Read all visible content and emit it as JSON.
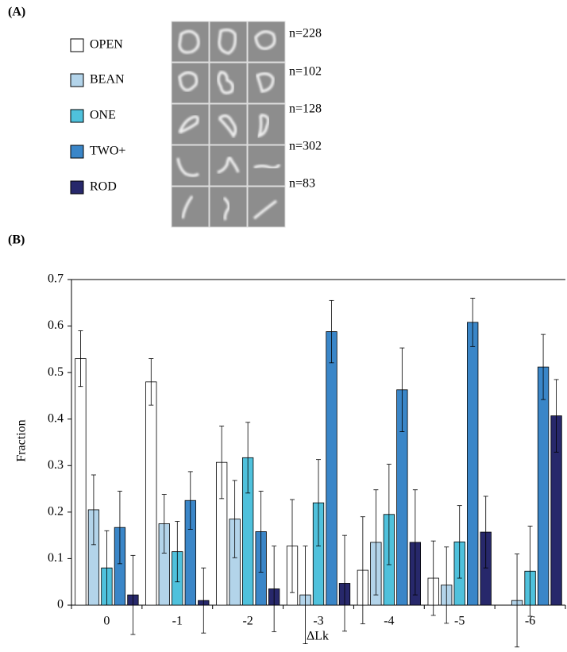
{
  "panels": [
    "(A)",
    "(B)"
  ],
  "counts": [
    "n=228",
    "n=102",
    "n=128",
    "n=302",
    "n=83"
  ],
  "chart_data": {
    "type": "bar",
    "x_label": "ΔLk",
    "y_label": "Fraction",
    "categories": [
      "0",
      "-1",
      "-2",
      "-3",
      "-4",
      "-5",
      "-6"
    ],
    "series": [
      {
        "name": "OPEN",
        "color": "#ffffff",
        "values": [
          0.53,
          0.48,
          0.307,
          0.127,
          0.075,
          0.058,
          0
        ],
        "errors": [
          0.06,
          0.05,
          0.078,
          0.1,
          0.115,
          0.08,
          0
        ]
      },
      {
        "name": "BEAN",
        "color": "#b3d4ea",
        "values": [
          0.205,
          0.175,
          0.185,
          0.022,
          0.135,
          0.043,
          0.01
        ],
        "errors": [
          0.075,
          0.063,
          0.083,
          0.105,
          0.113,
          0.082,
          0.1
        ]
      },
      {
        "name": "ONE",
        "color": "#4fc1dc",
        "values": [
          0.08,
          0.115,
          0.317,
          0.22,
          0.195,
          0.136,
          0.073
        ],
        "errors": [
          0.08,
          0.065,
          0.076,
          0.093,
          0.108,
          0.078,
          0.097
        ]
      },
      {
        "name": "TWO+",
        "color": "#3a86c8",
        "values": [
          0.167,
          0.225,
          0.158,
          0.588,
          0.463,
          0.608,
          0.512
        ],
        "errors": [
          0.078,
          0.062,
          0.087,
          0.067,
          0.09,
          0.052,
          0.07
        ]
      },
      {
        "name": "ROD",
        "color": "#27286b",
        "values": [
          0.022,
          0.01,
          0.035,
          0.047,
          0.135,
          0.157,
          0.407
        ],
        "errors": [
          0.085,
          0.07,
          0.092,
          0.103,
          0.113,
          0.077,
          0.078
        ]
      }
    ],
    "ylim": [
      0,
      0.7
    ],
    "yticks": [
      0,
      0.1,
      0.2,
      0.3,
      0.4,
      0.5,
      0.6,
      0.7
    ]
  }
}
